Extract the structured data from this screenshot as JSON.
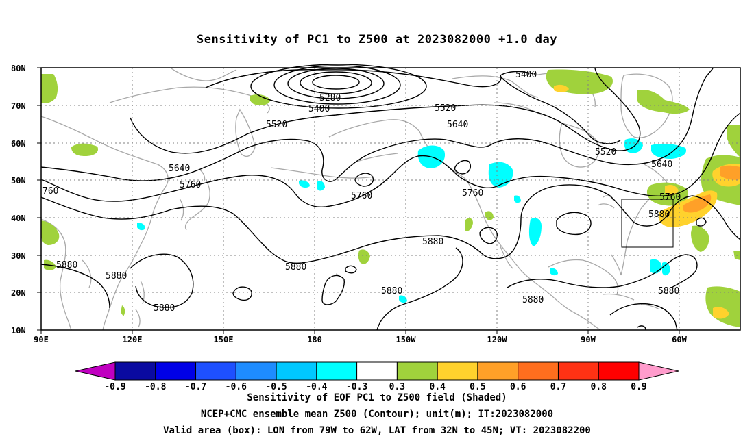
{
  "title": "Sensitivity of PC1 to Z500 at 2023082000 +1.0 day",
  "lat_labels": [
    "80N",
    "70N",
    "60N",
    "50N",
    "40N",
    "30N",
    "20N",
    "10N"
  ],
  "lon_labels": [
    "90E",
    "120E",
    "150E",
    "180",
    "150W",
    "120W",
    "90W",
    "60W"
  ],
  "contour_labels": {
    "c5400a": "5400",
    "c5280": "5280",
    "c5400b": "5400",
    "c5520a": "5520",
    "c5520b": "5520",
    "c5520c": "5520",
    "c5640a": "5640",
    "c5640b": "5640",
    "c5640c": "5640",
    "c5760a": "5760",
    "c5760b": "5760",
    "c5760c": "5760",
    "c5760d": "5760",
    "c5760e": "760",
    "c5880a": "5880",
    "c5880b": "5880",
    "c5880c": "5880",
    "c5880d": "5880",
    "c5880e": "5880",
    "c5880f": "5880",
    "c5880g": "5880",
    "c5880h": "5880",
    "c5880i": "5880"
  },
  "colorbar": {
    "labels": [
      "-0.9",
      "-0.8",
      "-0.7",
      "-0.6",
      "-0.5",
      "-0.4",
      "-0.3",
      "0.3",
      "0.4",
      "0.5",
      "0.6",
      "0.7",
      "0.8",
      "0.9"
    ],
    "colors": [
      "#c000c0",
      "#0a0aa0",
      "#0000e6",
      "#1e50ff",
      "#1e8cff",
      "#00c8ff",
      "#00ffff",
      "#ffffff",
      "#a0d23c",
      "#ffd22d",
      "#ffa028",
      "#ff6e1e",
      "#ff3214",
      "#ff0000",
      "#ff9ccc"
    ]
  },
  "captions": {
    "line1": "Sensitivity of EOF PC1 to Z500 field (Shaded)",
    "line2": "NCEP+CMC ensemble mean Z500 (Contour); unit(m); IT:2023082000",
    "line3": "Valid area (box): LON from 79W to 62W, LAT from 32N to 45N; VT: 2023082200"
  }
}
